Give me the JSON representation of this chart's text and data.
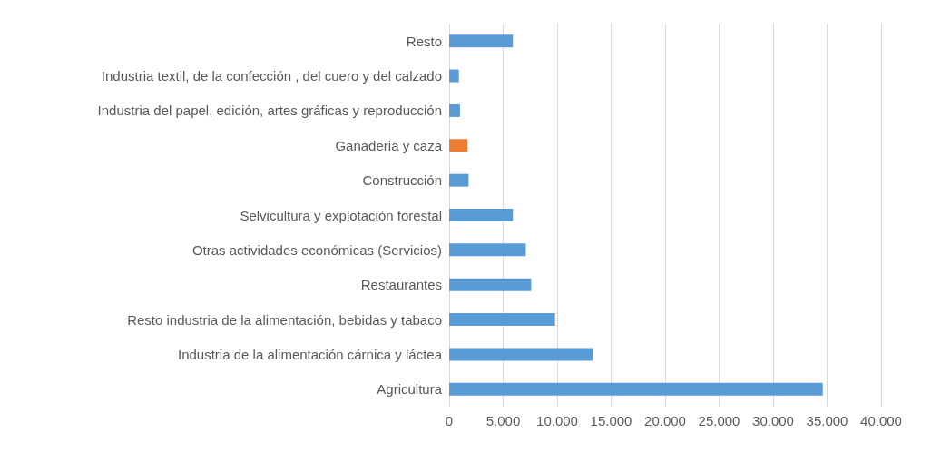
{
  "chart_data": {
    "type": "bar",
    "orientation": "horizontal",
    "categories": [
      "Resto",
      "Industria textil, de la confección , del cuero y del calzado",
      "Industria del papel, edición, artes gráficas y reproducción",
      "Ganaderia y caza",
      "Construcción",
      "Selvicultura y explotación forestal",
      "Otras actividades económicas (Servicios)",
      "Restaurantes",
      "Resto industria de la alimentación, bebidas y tabaco",
      "Industria de la alimentación cárnica y láctea",
      "Agricultura"
    ],
    "values": [
      5900,
      900,
      1000,
      1700,
      1800,
      5900,
      7100,
      7600,
      9800,
      13300,
      34600
    ],
    "colors": [
      "#5b9bd5",
      "#5b9bd5",
      "#5b9bd5",
      "#ed7d31",
      "#5b9bd5",
      "#5b9bd5",
      "#5b9bd5",
      "#5b9bd5",
      "#5b9bd5",
      "#5b9bd5",
      "#5b9bd5"
    ],
    "xlim": [
      0,
      40000
    ],
    "xticks": [
      0,
      {
        "value": 5000,
        "label": "5.000"
      },
      {
        "value": 10000,
        "label": "10.000"
      },
      {
        "value": 15000,
        "label": "15.000"
      },
      {
        "value": 20000,
        "label": "20.000"
      },
      {
        "value": 25000,
        "label": "25.000"
      },
      {
        "value": 30000,
        "label": "30.000"
      },
      {
        "value": 35000,
        "label": "35.000"
      },
      {
        "value": 40000,
        "label": "40.000"
      }
    ],
    "grid": "x"
  }
}
